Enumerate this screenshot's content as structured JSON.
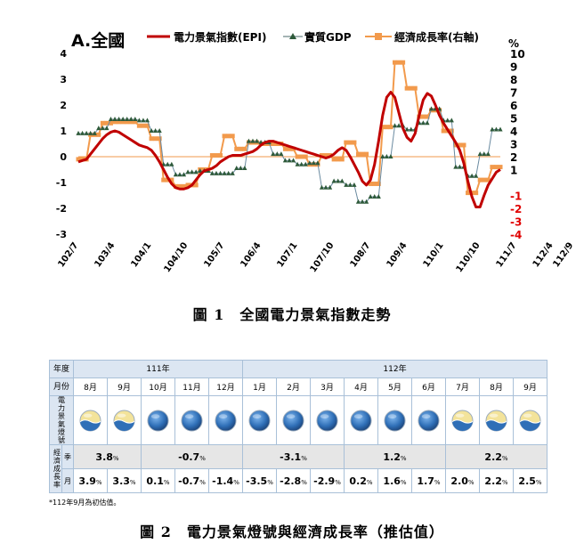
{
  "chart_data": {
    "type": "line",
    "panel_label": "A.全國",
    "legend": [
      "電力景氣指數(EPI)",
      "實質GDP",
      "經濟成長率(右軸)"
    ],
    "right_unit": "%",
    "y_left": {
      "min": -3,
      "max": 4,
      "ticks": [
        "4",
        "3",
        "2",
        "1",
        "0",
        "-1",
        "-2",
        "-3"
      ]
    },
    "y_right": {
      "min": -4,
      "max": 10,
      "ticks": [
        "10",
        "9",
        "8",
        "7",
        "6",
        "5",
        "4",
        "3",
        "2",
        "1",
        "-1",
        "-2",
        "-3",
        "-4"
      ]
    },
    "x_ticks": [
      "102/7",
      "103/4",
      "104/1",
      "104/10",
      "105/7",
      "106/4",
      "107/1",
      "107/10",
      "108/7",
      "109/4",
      "110/1",
      "110/10",
      "111/7",
      "112/4",
      "112/9"
    ],
    "x_start": "102/7",
    "series": [
      {
        "name": "電力景氣指數(EPI)",
        "axis": "left",
        "color": "#c00000",
        "values": [
          -0.2,
          -0.15,
          -0.1,
          0.1,
          0.3,
          0.5,
          0.7,
          0.85,
          0.95,
          1.0,
          0.95,
          0.85,
          0.75,
          0.65,
          0.55,
          0.45,
          0.4,
          0.35,
          0.25,
          0.05,
          -0.2,
          -0.5,
          -0.8,
          -1.05,
          -1.2,
          -1.25,
          -1.25,
          -1.2,
          -1.1,
          -0.9,
          -0.7,
          -0.55,
          -0.5,
          -0.45,
          -0.35,
          -0.2,
          -0.1,
          0.0,
          0.05,
          0.05,
          0.05,
          0.1,
          0.15,
          0.2,
          0.3,
          0.45,
          0.55,
          0.6,
          0.6,
          0.55,
          0.5,
          0.45,
          0.4,
          0.35,
          0.3,
          0.25,
          0.2,
          0.15,
          0.1,
          0.05,
          0.0,
          -0.05,
          0.0,
          0.1,
          0.25,
          0.35,
          0.25,
          0.0,
          -0.3,
          -0.6,
          -0.95,
          -1.1,
          -0.9,
          -0.3,
          0.6,
          1.6,
          2.3,
          2.5,
          2.3,
          1.7,
          1.1,
          0.75,
          0.6,
          0.9,
          1.6,
          2.2,
          2.45,
          2.35,
          2.0,
          1.6,
          1.3,
          1.05,
          0.8,
          0.55,
          0.25,
          -0.25,
          -0.95,
          -1.55,
          -1.95,
          -1.95,
          -1.5,
          -1.1,
          -0.85,
          -0.6,
          -0.5
        ]
      },
      {
        "name": "實質GDP",
        "axis": "left",
        "color": "#4a6a6a",
        "values": [
          0.9,
          0.9,
          0.9,
          0.9,
          0.9,
          1.1,
          1.1,
          1.1,
          1.45,
          1.45,
          1.45,
          1.45,
          1.45,
          1.45,
          1.45,
          1.4,
          1.4,
          1.4,
          1.0,
          1.0,
          1.0,
          -0.3,
          -0.3,
          -0.3,
          -0.7,
          -0.7,
          -0.7,
          -0.6,
          -0.6,
          -0.6,
          -0.55,
          -0.55,
          -0.55,
          -0.65,
          -0.65,
          -0.65,
          -0.65,
          -0.65,
          -0.65,
          -0.45,
          -0.45,
          -0.45,
          0.6,
          0.6,
          0.6,
          0.55,
          0.55,
          0.55,
          0.1,
          0.1,
          0.1,
          -0.15,
          -0.15,
          -0.15,
          -0.3,
          -0.3,
          -0.3,
          -0.25,
          -0.25,
          -0.25,
          -1.2,
          -1.2,
          -1.2,
          -0.95,
          -0.95,
          -0.95,
          -1.1,
          -1.1,
          -1.1,
          -1.75,
          -1.75,
          -1.75,
          -1.55,
          -1.55,
          -1.55,
          0.0,
          0.0,
          0.0,
          1.2,
          1.2,
          1.2,
          1.05,
          1.05,
          1.05,
          1.3,
          1.3,
          1.3,
          1.85,
          1.85,
          1.85,
          1.4,
          1.4,
          1.4,
          -0.4,
          -0.4,
          -0.4,
          -0.75,
          -0.75,
          -0.75,
          0.1,
          0.1,
          0.1,
          1.05,
          1.05,
          1.05
        ]
      },
      {
        "name": "經濟成長率(右軸)",
        "axis": "right",
        "color": "#f29a4c",
        "values": [
          1.8,
          1.8,
          1.8,
          3.7,
          3.7,
          3.7,
          4.6,
          4.6,
          4.6,
          4.7,
          4.7,
          4.7,
          4.7,
          4.7,
          4.7,
          4.4,
          4.4,
          4.4,
          3.4,
          3.4,
          3.4,
          0.2,
          0.2,
          0.2,
          -0.3,
          -0.3,
          -0.3,
          -0.2,
          -0.2,
          -0.2,
          1.0,
          1.0,
          1.0,
          2.1,
          2.1,
          2.1,
          3.6,
          3.6,
          3.6,
          2.6,
          2.6,
          2.6,
          3.1,
          3.1,
          3.1,
          3.0,
          3.0,
          3.0,
          3.0,
          3.0,
          3.0,
          2.6,
          2.6,
          2.6,
          2.0,
          2.0,
          2.0,
          1.4,
          1.4,
          1.4,
          2.1,
          2.1,
          2.1,
          1.8,
          1.8,
          1.8,
          3.1,
          3.1,
          3.1,
          2.2,
          2.2,
          2.2,
          -0.1,
          -0.1,
          -0.1,
          4.3,
          4.3,
          4.3,
          9.3,
          9.3,
          9.3,
          7.3,
          7.3,
          7.3,
          5.1,
          5.1,
          5.1,
          5.6,
          5.6,
          5.6,
          4.0,
          4.0,
          4.0,
          2.9,
          2.9,
          2.9,
          -0.8,
          -0.8,
          -0.8,
          0.2,
          0.2,
          0.2,
          1.2,
          1.2,
          1.2
        ]
      }
    ]
  },
  "captions": {
    "fig1": "圖 1　全國電力景氣指數走勢",
    "fig2": "圖 2　電力景氣燈號與經濟成長率（推估值）"
  },
  "table": {
    "year_label": "年度",
    "month_label": "月份",
    "signal_label": "電力景氣燈號",
    "growth_label": "經濟成長率",
    "quarter_label": "季",
    "month_row_label": "月",
    "years": [
      "111年",
      "112年"
    ],
    "months": [
      "8月",
      "9月",
      "10月",
      "11月",
      "12月",
      "1月",
      "2月",
      "3月",
      "4月",
      "5月",
      "6月",
      "7月",
      "8月",
      "9月"
    ],
    "signals": [
      "yellow-blue",
      "yellow-blue",
      "blue",
      "blue",
      "blue",
      "blue",
      "blue",
      "blue",
      "blue",
      "blue",
      "blue",
      "yellow-blue",
      "yellow-blue",
      "yellow-blue"
    ],
    "quarters": [
      {
        "v": "3.8",
        "u": "%"
      },
      {
        "v": "-0.7",
        "u": "%"
      },
      {
        "v": "-3.1",
        "u": "%"
      },
      {
        "v": "1.2",
        "u": "%"
      },
      {
        "v": "2.2",
        "u": "%"
      }
    ],
    "monthly": [
      {
        "v": "3.9",
        "u": "%"
      },
      {
        "v": "3.3",
        "u": "%"
      },
      {
        "v": "0.1",
        "u": "%"
      },
      {
        "v": "-0.7",
        "u": "%"
      },
      {
        "v": "-1.4",
        "u": "%"
      },
      {
        "v": "-3.5",
        "u": "%"
      },
      {
        "v": "-2.8",
        "u": "%"
      },
      {
        "v": "-2.9",
        "u": "%"
      },
      {
        "v": "0.2",
        "u": "%"
      },
      {
        "v": "1.6",
        "u": "%"
      },
      {
        "v": "1.7",
        "u": "%"
      },
      {
        "v": "2.0",
        "u": "%"
      },
      {
        "v": "2.2",
        "u": "%"
      },
      {
        "v": "2.5",
        "u": "%"
      }
    ],
    "note": "*112年9月為初估值。"
  }
}
